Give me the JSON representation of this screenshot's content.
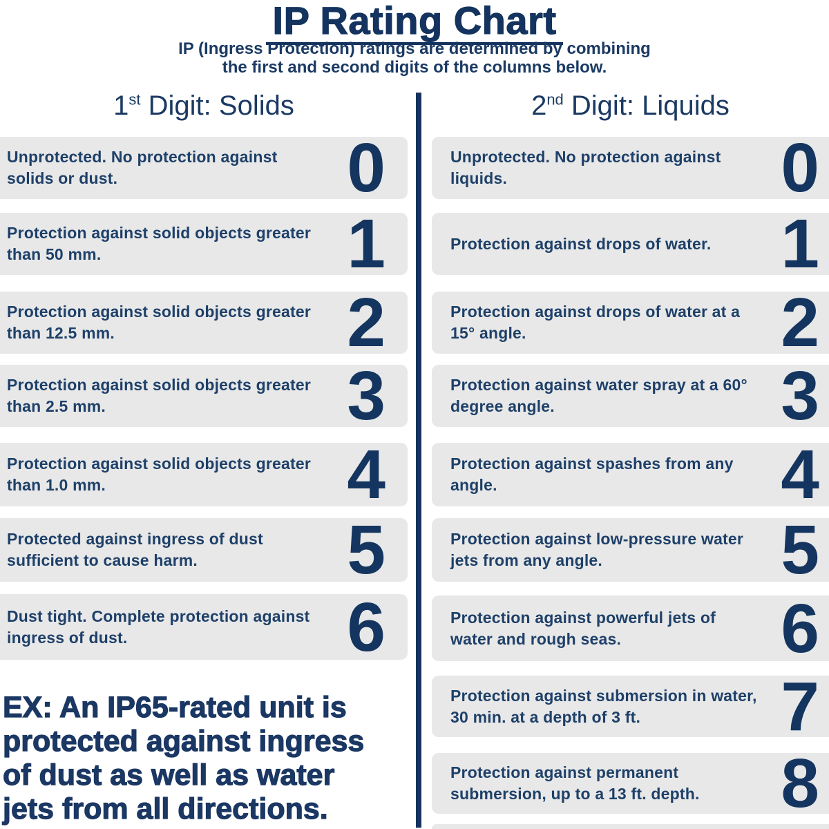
{
  "title": "IP Rating Chart",
  "subtitle": {
    "line1": "IP (Ingress Protection) ratings are determined by combining",
    "line2": "the first and second digits of the columns below."
  },
  "columns": {
    "left": {
      "header": {
        "num": "1",
        "sup": "st",
        "rest": " Digit: Solids"
      },
      "rows": [
        {
          "digit": "0",
          "text": "Unprotected. No protection against solids or dust."
        },
        {
          "digit": "1",
          "text": "Protection against solid objects greater than 50 mm."
        },
        {
          "digit": "2",
          "text": "Protection against solid objects greater than 12.5 mm."
        },
        {
          "digit": "3",
          "text": "Protection against solid objects greater than 2.5 mm."
        },
        {
          "digit": "4",
          "text": "Protection against solid objects greater than 1.0 mm."
        },
        {
          "digit": "5",
          "text": "Protected against ingress of dust sufficient to cause harm."
        },
        {
          "digit": "6",
          "text": "Dust tight. Complete protection against ingress of dust."
        }
      ]
    },
    "right": {
      "header": {
        "num": "2",
        "sup": "nd",
        "rest": " Digit: Liquids"
      },
      "rows": [
        {
          "digit": "0",
          "text": "Unprotected. No protection against liquids."
        },
        {
          "digit": "1",
          "text": "Protection against drops of water."
        },
        {
          "digit": "2",
          "text": "Protection against drops of water at a 15° angle."
        },
        {
          "digit": "3",
          "text": "Protection against water spray at a 60° degree angle."
        },
        {
          "digit": "4",
          "text": "Protection against spashes from any angle."
        },
        {
          "digit": "5",
          "text": "Protection against low-pressure water jets from any angle."
        },
        {
          "digit": "6",
          "text": "Protection against powerful jets of water and rough seas."
        },
        {
          "digit": "7",
          "text": "Protection against submersion in water, 30 min. at a depth of 3 ft."
        },
        {
          "digit": "8",
          "text": "Protection against permanent submersion, up to a 13 ft. depth."
        }
      ]
    }
  },
  "example": {
    "line1": "EX: An IP65-rated unit is",
    "line2": "protected against ingress",
    "line3": "of dust as well as water",
    "line4": "jets from all directions."
  },
  "colors": {
    "navy_dark": "#14335e",
    "navy_text": "#1e4069",
    "box_gray": "#e8e8e8",
    "background": "#ffffff"
  }
}
